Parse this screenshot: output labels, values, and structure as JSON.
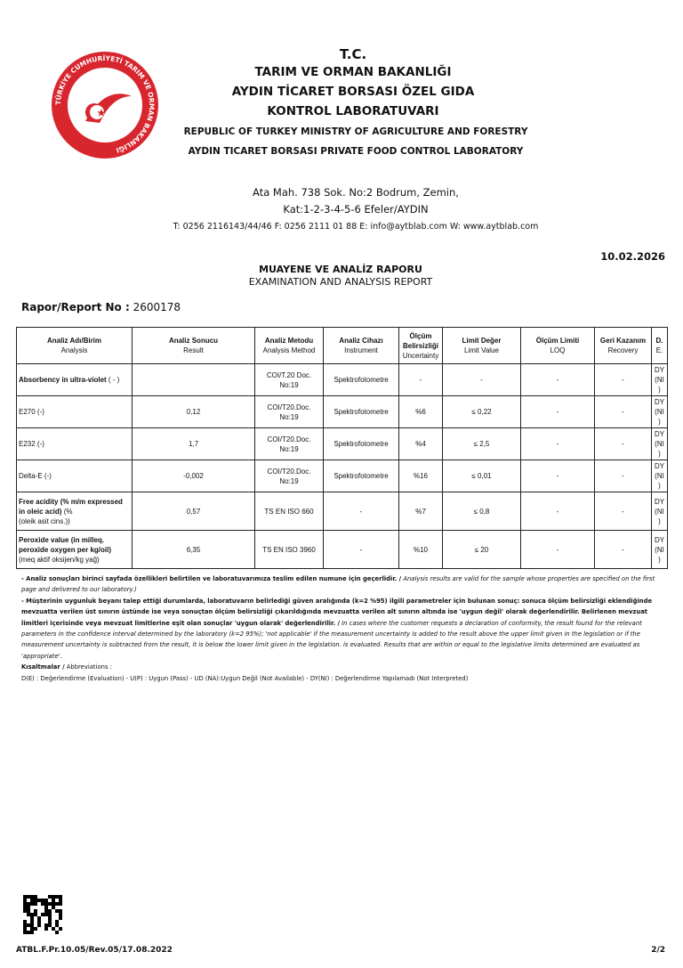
{
  "header": {
    "logo_text": "TÜRKİYE CUMHURİYETİ TARIM VE ORMAN BAKANLIĞI",
    "line1": "T.C.",
    "line2": "TARIM VE ORMAN BAKANLIĞI",
    "line3": "AYDIN TİCARET BORSASI ÖZEL GIDA",
    "line4": "KONTROL LABORATUVARI",
    "line5": "REPUBLIC OF TURKEY MINISTRY OF AGRICULTURE AND FORESTRY",
    "line6": "AYDIN TICARET BORSASI PRIVATE FOOD CONTROL LABORATORY",
    "address1": "Ata Mah. 738 Sok. No:2 Bodrum, Zemin,",
    "address2": "Kat:1-2-3-4-5-6 Efeler/AYDIN",
    "contact": "T: 0256 2116143/44/46 F: 0256 2111 01 88 E: info@aytblab.com W: www.aytblab.com",
    "logo_color": "#d7262e"
  },
  "date": "10.02.2026",
  "report": {
    "title_tr": "MUAYENE VE ANALİZ RAPORU",
    "title_en": "EXAMINATION AND ANALYSIS REPORT",
    "no_label": "Rapor/Report No :",
    "no_value": "2600178"
  },
  "table": {
    "headers": [
      {
        "tr": "Analiz Adı/Birim",
        "en": "Analysis"
      },
      {
        "tr": "Analiz Sonucu",
        "en": "Result"
      },
      {
        "tr": "Analiz Metodu",
        "en": "Analysis Method"
      },
      {
        "tr": "Analiz Cihazı",
        "en": "Instrument"
      },
      {
        "tr": "Ölçüm Belirsizliği",
        "en": "Uncertainty"
      },
      {
        "tr": "Limit Değer",
        "en": "Limit Value"
      },
      {
        "tr": "Ölçüm Limiti",
        "en": "LOQ"
      },
      {
        "tr": "Geri Kazanım",
        "en": "Recovery"
      },
      {
        "tr": "D.",
        "en": "E."
      }
    ],
    "rows": [
      {
        "name_bold": "Absorbency in ultra-violet",
        "name_rest": " ( - )",
        "name_sub": "",
        "result": "",
        "method": "COI/T.20 Doc. No:19",
        "instrument": "Spektrofotometre",
        "uncertainty": "-",
        "limit": "-",
        "loq": "-",
        "recovery": "-",
        "de": "DY (NI)"
      },
      {
        "name_bold": "",
        "name_rest": "E270 (-)",
        "name_sub": "",
        "result": "0,12",
        "method": "COI/T20.Doc. No:19",
        "instrument": "Spektrofotometre",
        "uncertainty": "%6",
        "limit": "≤ 0,22",
        "loq": "-",
        "recovery": "-",
        "de": "DY (NI)"
      },
      {
        "name_bold": "",
        "name_rest": "E232 (-)",
        "name_sub": "",
        "result": "1,7",
        "method": "COI/T20.Doc. No:19",
        "instrument": "Spektrofotometre",
        "uncertainty": "%4",
        "limit": "≤ 2,5",
        "loq": "-",
        "recovery": "-",
        "de": "DY (NI)"
      },
      {
        "name_bold": "",
        "name_rest": "Delta-E (-)",
        "name_sub": "",
        "result": "-0,002",
        "method": "COI/T20.Doc. No:19",
        "instrument": "Spektrofotometre",
        "uncertainty": "%16",
        "limit": "≤ 0,01",
        "loq": "-",
        "recovery": "-",
        "de": "DY (NI)"
      },
      {
        "name_bold": "Free acidity (% m/m expressed in oleic acid)",
        "name_rest": " (%",
        "name_sub": "(oleik asit cins.))",
        "result": "0,57",
        "method": "TS EN ISO 660",
        "instrument": "-",
        "uncertainty": "%7",
        "limit": "≤ 0,8",
        "loq": "-",
        "recovery": "-",
        "de": "DY (NI)"
      },
      {
        "name_bold": "Peroxide value (in milleq. peroxide oxygen per kg/oil)",
        "name_rest": "",
        "name_sub": "(meq aktif oksijen/kg yağ)",
        "result": "6,35",
        "method": "TS EN ISO 3960",
        "instrument": "-",
        "uncertainty": "%10",
        "limit": "≤ 20",
        "loq": "-",
        "recovery": "-",
        "de": "DY (NI)"
      }
    ]
  },
  "notes": {
    "n1_tr": "- Analiz sonuçları birinci sayfada özellikleri belirtilen ve laboratuvarımıza teslim edilen numune için geçerlidir. /",
    "n1_en": " Analysis results are valid for the sample whose properties are specified on the first page and delivered to our laboratory.)",
    "n2_tr": "- Müşterinin uygunluk beyanı talep ettiği durumlarda, laboratuvarın belirlediği güven aralığında (k=2 %95) ilgili parametreler için bulunan sonuç: sonuca ölçüm belirsizliği eklendiğinde mevzuatta verilen üst sınırın üstünde ise veya sonuçtan ölçüm belirsizliği çıkarıldığında mevzuatta verilen alt sınırın altında ise 'uygun değil' olarak değerlendirilir. Belirlenen mevzuat limitleri içerisinde veya mevzuat limitlerine eşit olan sonuçlar 'uygun olarak' değerlendirilir. /",
    "n2_en": " In cases where the customer requests a declaration of conformity, the result found for the relevant parameters in the confidence interval determined by the laboratory (k=2 95%); 'not applicable' if the measurement uncertainty is added to the result above the upper limit given in the legislation or if the measurement uncertainty is subtracted from the result, it is below the lower limit given in the legislation. is evaluated. Results that are within or equal to the legislative limits determined are evaluated as 'appropriate'.",
    "abbr_tr": "Kısaltmalar /",
    "abbr_en": " Abbreviations :",
    "abbr_list": "D(E) : Değerlendirme (Evaluation) - U(P) : Uygun (Pass) - UD (NA):Uygun Değil (Not Available) - DY(NI) : Değerlendirme Yapılamadı (Not Interpreted)"
  },
  "footer": {
    "form_code": "ATBL.F.Pr.10.05/Rev.05/17.08.2022",
    "page": "2/2"
  }
}
